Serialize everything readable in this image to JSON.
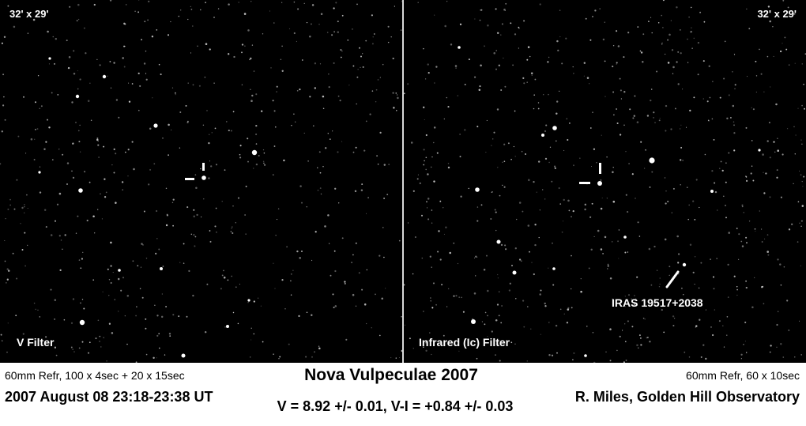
{
  "image": {
    "left_panel": {
      "field_of_view": "32' x 29'",
      "filter": "V Filter"
    },
    "right_panel": {
      "field_of_view": "32' x 29'",
      "filter": "Infrared (Ic) Filter",
      "annotation": "IRAS 19517+2038"
    }
  },
  "caption": {
    "left_setup": "60mm Refr,  100 x 4sec + 20 x 15sec",
    "title": "Nova Vulpeculae 2007",
    "right_setup": "60mm Refr,  60 x 10sec",
    "date": "2007 August 08  23:18-23:38 UT",
    "photometry": "V = 8.92 +/- 0.01,  V-I = +0.84 +/- 0.03",
    "credit": "R. Miles, Golden Hill Observatory"
  },
  "colors": {
    "sky": "#000000",
    "stars": "#ffffff",
    "caption_background": "#ffffff",
    "caption_text": "#000000"
  }
}
